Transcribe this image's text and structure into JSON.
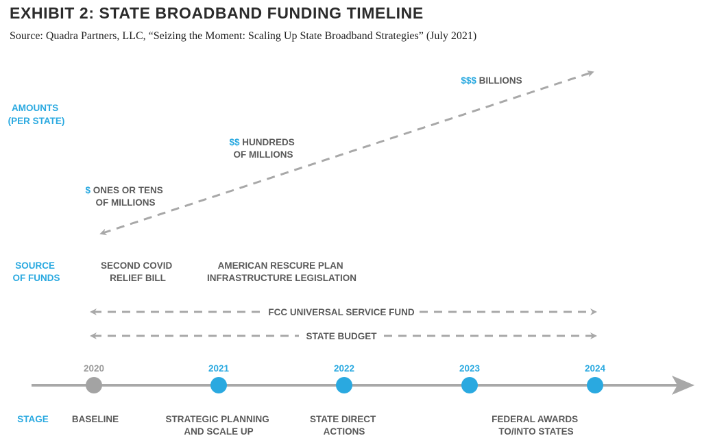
{
  "title": "EXHIBIT 2: STATE BROADBAND FUNDING TIMELINE",
  "source": "Source: Quadra Partners, LLC, “Seizing the Moment: Scaling Up State Broadband Strategies” (July 2021)",
  "row_labels": {
    "amounts": [
      "AMOUNTS",
      "(PER STATE)"
    ],
    "source_of_funds": [
      "SOURCE",
      "OF FUNDS"
    ],
    "stage": "STAGE"
  },
  "amounts": [
    {
      "symbol": "$",
      "lines": [
        " ONES OR TENS",
        "OF MILLIONS"
      ]
    },
    {
      "symbol": "$$",
      "lines": [
        " HUNDREDS",
        "OF MILLIONS"
      ]
    },
    {
      "symbol": "$$$",
      "lines": [
        " BILLIONS"
      ]
    }
  ],
  "funding_sources": [
    [
      "SECOND COVID",
      "RELIEF BILL"
    ],
    [
      "AMERICAN RESCURE PLAN",
      "INFRASTRUCTURE LEGISLATION"
    ]
  ],
  "ongoing_funds": [
    "FCC UNIVERSAL SERVICE FUND",
    "STATE BUDGET"
  ],
  "timeline": [
    {
      "year": "2020",
      "stage": [
        "BASELINE"
      ],
      "baseline": true
    },
    {
      "year": "2021",
      "stage": [
        "STRATEGIC PLANNING",
        "AND SCALE UP"
      ],
      "baseline": false
    },
    {
      "year": "2022",
      "stage": [
        "STATE DIRECT",
        "ACTIONS"
      ],
      "baseline": false
    },
    {
      "year": "2023",
      "stage": [],
      "baseline": false
    },
    {
      "year": "2024",
      "stage": [
        "FEDERAL AWARDS",
        "TO/INTO STATES"
      ],
      "baseline": false
    }
  ],
  "colors": {
    "accent": "#2aa9e0",
    "gray": "#a8a8a8",
    "dark_gray": "#5a5a5a",
    "baseline_dot": "#a3a3a3"
  }
}
